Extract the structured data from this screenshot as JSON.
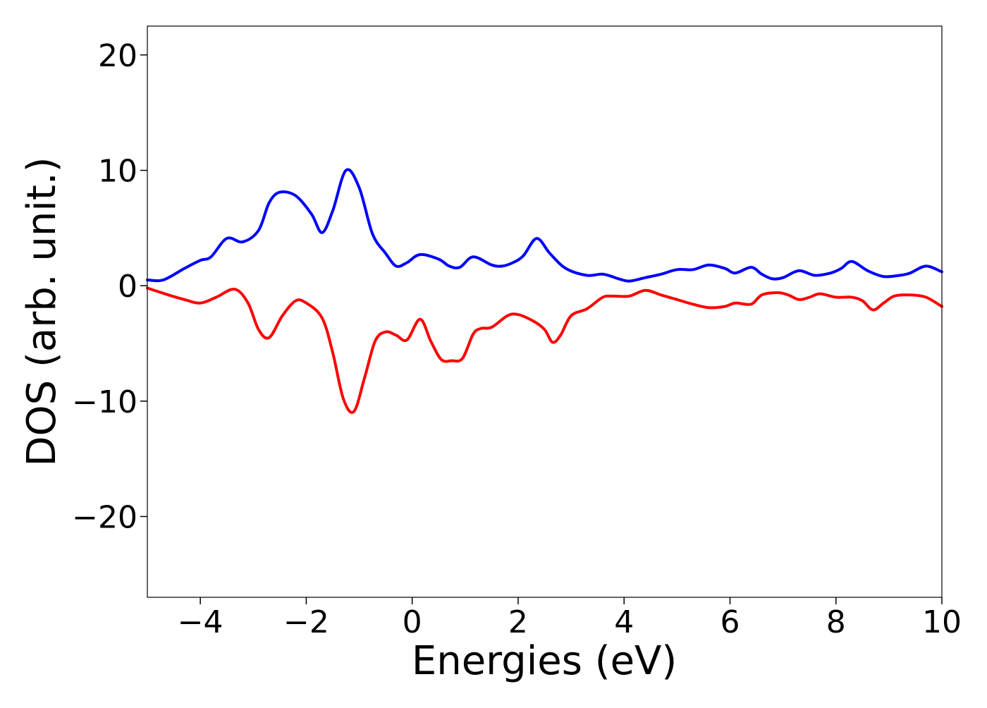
{
  "chart_data": {
    "type": "line",
    "title": "",
    "xlabel": "Energies (eV)",
    "ylabel": "DOS (arb. unit.)",
    "xlim": [
      -5,
      10
    ],
    "ylim": [
      -27,
      22.5
    ],
    "xticks": [
      -4,
      -2,
      0,
      2,
      4,
      6,
      8,
      10
    ],
    "xtick_labels": [
      "−4",
      "−2",
      "0",
      "2",
      "4",
      "6",
      "8",
      "10"
    ],
    "yticks": [
      20,
      10,
      0,
      -10,
      -20
    ],
    "ytick_labels": [
      "20",
      "10",
      "0",
      "−10",
      "−20"
    ],
    "grid": false,
    "legend": "none",
    "series": [
      {
        "color": "#0000ff",
        "points": [
          [
            -5.0,
            0.5
          ],
          [
            -4.7,
            0.5
          ],
          [
            -4.3,
            1.5
          ],
          [
            -4.0,
            2.2
          ],
          [
            -3.8,
            2.5
          ],
          [
            -3.5,
            4.1
          ],
          [
            -3.2,
            3.8
          ],
          [
            -2.9,
            4.8
          ],
          [
            -2.7,
            7.2
          ],
          [
            -2.5,
            8.1
          ],
          [
            -2.2,
            7.8
          ],
          [
            -1.9,
            6.2
          ],
          [
            -1.7,
            4.6
          ],
          [
            -1.5,
            6.5
          ],
          [
            -1.25,
            10.0
          ],
          [
            -1.0,
            8.5
          ],
          [
            -0.75,
            4.5
          ],
          [
            -0.5,
            2.8
          ],
          [
            -0.3,
            1.7
          ],
          [
            -0.1,
            2.0
          ],
          [
            0.15,
            2.7
          ],
          [
            0.5,
            2.3
          ],
          [
            0.7,
            1.7
          ],
          [
            0.9,
            1.6
          ],
          [
            1.15,
            2.5
          ],
          [
            1.5,
            1.8
          ],
          [
            1.7,
            1.7
          ],
          [
            1.9,
            2.0
          ],
          [
            2.1,
            2.6
          ],
          [
            2.35,
            4.1
          ],
          [
            2.6,
            2.8
          ],
          [
            2.9,
            1.5
          ],
          [
            3.3,
            0.9
          ],
          [
            3.6,
            1.0
          ],
          [
            3.9,
            0.6
          ],
          [
            4.1,
            0.4
          ],
          [
            4.4,
            0.7
          ],
          [
            4.7,
            1.0
          ],
          [
            5.0,
            1.4
          ],
          [
            5.3,
            1.4
          ],
          [
            5.6,
            1.8
          ],
          [
            5.9,
            1.5
          ],
          [
            6.1,
            1.1
          ],
          [
            6.4,
            1.6
          ],
          [
            6.6,
            1.0
          ],
          [
            6.8,
            0.6
          ],
          [
            7.0,
            0.7
          ],
          [
            7.3,
            1.3
          ],
          [
            7.6,
            0.9
          ],
          [
            7.9,
            1.1
          ],
          [
            8.1,
            1.5
          ],
          [
            8.3,
            2.1
          ],
          [
            8.6,
            1.3
          ],
          [
            8.9,
            0.8
          ],
          [
            9.2,
            0.9
          ],
          [
            9.4,
            1.1
          ],
          [
            9.7,
            1.7
          ],
          [
            10.0,
            1.2
          ]
        ]
      },
      {
        "color": "#ff0000",
        "points": [
          [
            -5.0,
            -0.2
          ],
          [
            -4.6,
            -0.8
          ],
          [
            -4.3,
            -1.2
          ],
          [
            -4.0,
            -1.5
          ],
          [
            -3.7,
            -1.0
          ],
          [
            -3.35,
            -0.3
          ],
          [
            -3.1,
            -1.5
          ],
          [
            -2.9,
            -3.8
          ],
          [
            -2.7,
            -4.5
          ],
          [
            -2.45,
            -2.6
          ],
          [
            -2.2,
            -1.3
          ],
          [
            -2.0,
            -1.5
          ],
          [
            -1.7,
            -2.8
          ],
          [
            -1.5,
            -5.8
          ],
          [
            -1.3,
            -9.8
          ],
          [
            -1.1,
            -10.9
          ],
          [
            -0.9,
            -8.0
          ],
          [
            -0.7,
            -4.8
          ],
          [
            -0.5,
            -4.0
          ],
          [
            -0.3,
            -4.3
          ],
          [
            -0.1,
            -4.7
          ],
          [
            0.15,
            -2.9
          ],
          [
            0.35,
            -4.8
          ],
          [
            0.55,
            -6.4
          ],
          [
            0.75,
            -6.5
          ],
          [
            0.95,
            -6.3
          ],
          [
            1.15,
            -4.2
          ],
          [
            1.3,
            -3.7
          ],
          [
            1.5,
            -3.6
          ],
          [
            1.8,
            -2.6
          ],
          [
            2.0,
            -2.5
          ],
          [
            2.3,
            -3.1
          ],
          [
            2.5,
            -3.8
          ],
          [
            2.65,
            -4.9
          ],
          [
            2.8,
            -4.3
          ],
          [
            3.0,
            -2.6
          ],
          [
            3.3,
            -2.0
          ],
          [
            3.6,
            -1.0
          ],
          [
            3.8,
            -0.9
          ],
          [
            4.1,
            -0.9
          ],
          [
            4.4,
            -0.4
          ],
          [
            4.7,
            -0.8
          ],
          [
            5.0,
            -1.2
          ],
          [
            5.3,
            -1.6
          ],
          [
            5.6,
            -1.9
          ],
          [
            5.9,
            -1.8
          ],
          [
            6.1,
            -1.5
          ],
          [
            6.4,
            -1.6
          ],
          [
            6.6,
            -0.8
          ],
          [
            6.9,
            -0.6
          ],
          [
            7.1,
            -0.8
          ],
          [
            7.3,
            -1.2
          ],
          [
            7.5,
            -1.0
          ],
          [
            7.7,
            -0.7
          ],
          [
            8.0,
            -1.0
          ],
          [
            8.3,
            -1.0
          ],
          [
            8.5,
            -1.3
          ],
          [
            8.7,
            -2.1
          ],
          [
            8.9,
            -1.5
          ],
          [
            9.1,
            -0.9
          ],
          [
            9.4,
            -0.8
          ],
          [
            9.7,
            -1.0
          ],
          [
            10.0,
            -1.8
          ]
        ]
      }
    ]
  }
}
